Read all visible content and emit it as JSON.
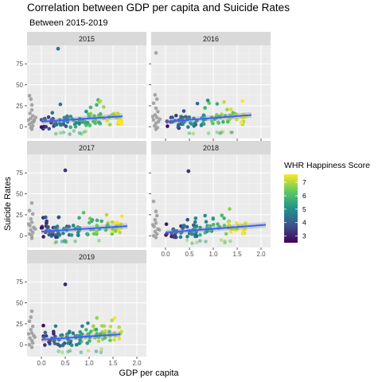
{
  "title": "Correlation between GDP per capita and Suicide Rates",
  "subtitle": "Between 2015-2019",
  "colors": {
    "panel_bg": "#ebebeb",
    "strip_bg": "#d9d9d9",
    "grid_major": "#ffffff",
    "na_points": "#999999",
    "trend_line": "#3366ff",
    "trend_band": "#999999",
    "viridis": [
      "#440154",
      "#3b528b",
      "#21918c",
      "#5ec962",
      "#fde725"
    ]
  },
  "chart_data": {
    "type": "scatter",
    "facet_by": "year",
    "facets": [
      "2015",
      "2016",
      "2017",
      "2018",
      "2019"
    ],
    "xlabel": "GDP per capita",
    "ylabel": "Suicide Rates",
    "x_ticks": [
      "0.0",
      "0.5",
      "1.0",
      "1.5",
      "2.0"
    ],
    "y_ticks": [
      "0",
      "25",
      "50",
      "75"
    ],
    "xlim": [
      -0.3,
      2.2
    ],
    "ylim": [
      -14,
      97
    ],
    "grid": true,
    "legend": {
      "title": "WHR Happiness Score",
      "placement": "right",
      "scale": "viridis",
      "range": [
        2.5,
        7.6
      ],
      "ticks": [
        "7",
        "6",
        "5",
        "4",
        "3"
      ]
    },
    "trend": {
      "type": "linear",
      "band": true
    },
    "panels": [
      {
        "label": "2015",
        "trend_start": [
          0.0,
          6
        ],
        "trend_end": [
          1.7,
          12.5
        ],
        "outliers": [
          {
            "x": 0.35,
            "y": 93,
            "score": 4.5
          }
        ],
        "missing_points": [
          [
            -0.25,
            37
          ],
          [
            -0.22,
            33
          ],
          [
            -0.2,
            26
          ],
          [
            -0.2,
            20
          ],
          [
            -0.24,
            16
          ],
          [
            -0.18,
            13
          ],
          [
            -0.22,
            10
          ],
          [
            -0.15,
            8
          ],
          [
            -0.2,
            5
          ],
          [
            -0.25,
            3
          ],
          [
            -0.18,
            1
          ],
          [
            -0.22,
            -1
          ],
          [
            -0.16,
            6
          ],
          [
            -0.12,
            11
          ],
          [
            -0.27,
            8
          ],
          [
            -0.2,
            -3
          ]
        ]
      },
      {
        "label": "2016",
        "trend_start": [
          0.0,
          6
        ],
        "trend_end": [
          1.8,
          14
        ],
        "outliers": [],
        "missing_points": [
          [
            -0.2,
            88
          ],
          [
            -0.22,
            38
          ],
          [
            -0.18,
            33
          ],
          [
            -0.25,
            28
          ],
          [
            -0.2,
            22
          ],
          [
            -0.16,
            18
          ],
          [
            -0.22,
            14
          ],
          [
            -0.18,
            11
          ],
          [
            -0.25,
            8
          ],
          [
            -0.15,
            6
          ],
          [
            -0.2,
            4
          ],
          [
            -0.23,
            1
          ],
          [
            -0.17,
            -1
          ],
          [
            -0.12,
            9
          ],
          [
            -0.27,
            12
          ],
          [
            -0.2,
            -3
          ]
        ]
      },
      {
        "label": "2017",
        "trend_start": [
          0.0,
          5
        ],
        "trend_end": [
          1.8,
          11.5
        ],
        "outliers": [
          {
            "x": 0.5,
            "y": 78,
            "score": 3.3
          }
        ],
        "missing_points": [
          [
            -0.2,
            39
          ],
          [
            -0.25,
            30
          ],
          [
            -0.18,
            26
          ],
          [
            -0.22,
            20
          ],
          [
            -0.2,
            16
          ],
          [
            -0.24,
            12
          ],
          [
            -0.16,
            10
          ],
          [
            -0.22,
            7
          ],
          [
            -0.18,
            4
          ],
          [
            -0.25,
            2
          ],
          [
            -0.2,
            0
          ],
          [
            -0.13,
            8
          ],
          [
            -0.27,
            14
          ],
          [
            -0.2,
            -3
          ]
        ]
      },
      {
        "label": "2018",
        "trend_start": [
          0.0,
          4
        ],
        "trend_end": [
          2.1,
          13
        ],
        "outliers": [
          {
            "x": 0.48,
            "y": 77,
            "score": 3.3
          }
        ],
        "missing_points": [
          [
            -0.25,
            41
          ],
          [
            -0.2,
            29
          ],
          [
            -0.18,
            24
          ],
          [
            -0.22,
            19
          ],
          [
            -0.2,
            15
          ],
          [
            -0.24,
            11
          ],
          [
            -0.16,
            8
          ],
          [
            -0.22,
            5
          ],
          [
            -0.18,
            2
          ],
          [
            -0.25,
            0
          ],
          [
            -0.2,
            -2
          ],
          [
            -0.13,
            7
          ],
          [
            -0.27,
            13
          ]
        ]
      },
      {
        "label": "2019",
        "trend_start": [
          0.0,
          6
        ],
        "trend_end": [
          1.65,
          12.5
        ],
        "outliers": [
          {
            "x": 0.5,
            "y": 72,
            "score": 3.1
          }
        ],
        "missing_points": [
          [
            -0.2,
            40
          ],
          [
            -0.22,
            33
          ],
          [
            -0.25,
            28
          ],
          [
            -0.18,
            22
          ],
          [
            -0.22,
            18
          ],
          [
            -0.2,
            14
          ],
          [
            -0.16,
            11
          ],
          [
            -0.24,
            8
          ],
          [
            -0.2,
            5
          ],
          [
            -0.18,
            2
          ],
          [
            -0.25,
            0
          ],
          [
            -0.14,
            9
          ],
          [
            -0.27,
            13
          ],
          [
            -0.2,
            -3
          ]
        ]
      }
    ]
  }
}
